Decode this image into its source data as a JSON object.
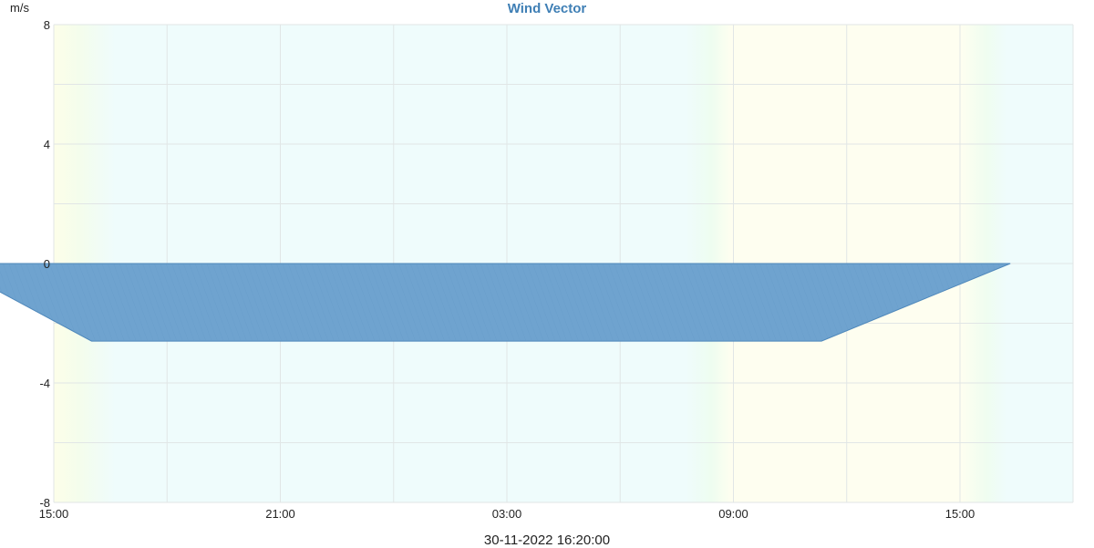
{
  "chart_data": {
    "type": "area",
    "title": "Wind Vector",
    "ylabel": "m/s",
    "ylim": [
      -8,
      8
    ],
    "yticks": [
      "8",
      "4",
      "0",
      "-4",
      "-8"
    ],
    "xticks": [
      "15:00",
      "21:00",
      "03:00",
      "09:00",
      "15:00"
    ],
    "grid": true,
    "legend": "none",
    "series": [
      {
        "values": [
          {
            "x": "29-11-2022 13:30",
            "y": -0.9
          },
          {
            "x": "29-11-2022 16:00",
            "y": -2.6
          },
          {
            "x": "30-11-2022 11:20",
            "y": -2.6
          },
          {
            "x": "30-11-2022 16:20",
            "y": 0.0
          }
        ]
      }
    ],
    "colors": {
      "area_fill": "#6fa3cf",
      "area_stroke": "#4f88bb",
      "title": "#3f7fb5",
      "night_band": "#effcfc",
      "day_band": "#fefef0",
      "grid": "#e1e6e6"
    }
  },
  "footer": {
    "timestamp": "30-11-2022 16:20:00"
  }
}
